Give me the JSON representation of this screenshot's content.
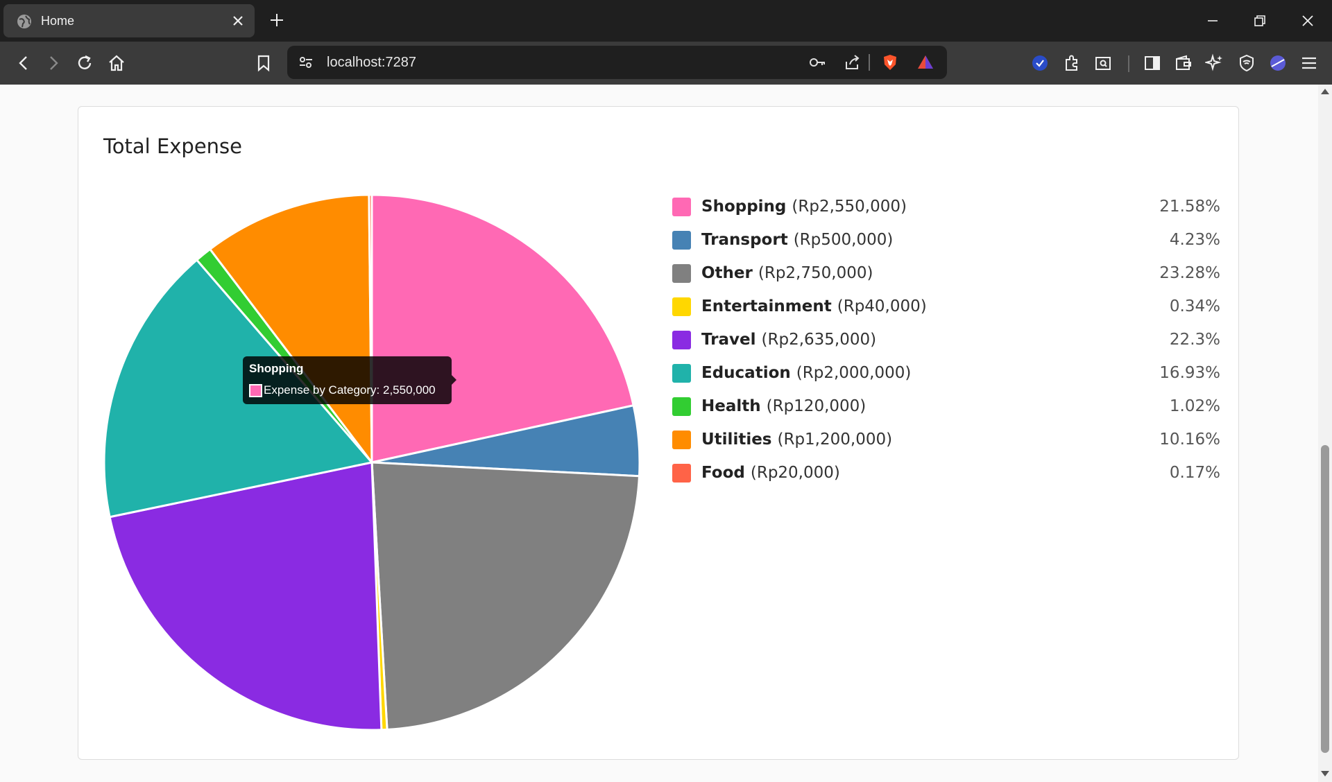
{
  "browser": {
    "tab_title": "Home",
    "url": "localhost:7287"
  },
  "card": {
    "title": "Total Expense"
  },
  "tooltip": {
    "title": "Shopping",
    "body": "Expense by Category: 2,550,000",
    "color": "#ff69b4"
  },
  "legend": [
    {
      "name": "Shopping",
      "amount": "(Rp2,550,000)",
      "percent": "21.58%",
      "color": "#ff69b4"
    },
    {
      "name": "Transport",
      "amount": "(Rp500,000)",
      "percent": "4.23%",
      "color": "#4682b4"
    },
    {
      "name": "Other",
      "amount": "(Rp2,750,000)",
      "percent": "23.28%",
      "color": "#808080"
    },
    {
      "name": "Entertainment",
      "amount": "(Rp40,000)",
      "percent": "0.34%",
      "color": "#ffd700"
    },
    {
      "name": "Travel",
      "amount": "(Rp2,635,000)",
      "percent": "22.3%",
      "color": "#8a2be2"
    },
    {
      "name": "Education",
      "amount": "(Rp2,000,000)",
      "percent": "16.93%",
      "color": "#20b2aa"
    },
    {
      "name": "Health",
      "amount": "(Rp120,000)",
      "percent": "1.02%",
      "color": "#32cd32"
    },
    {
      "name": "Utilities",
      "amount": "(Rp1,200,000)",
      "percent": "10.16%",
      "color": "#ff8c00"
    },
    {
      "name": "Food",
      "amount": "(Rp20,000)",
      "percent": "0.17%",
      "color": "#ff6347"
    }
  ],
  "chart_data": {
    "type": "pie",
    "title": "Total Expense",
    "categories": [
      "Shopping",
      "Transport",
      "Other",
      "Entertainment",
      "Travel",
      "Education",
      "Health",
      "Utilities",
      "Food"
    ],
    "values": [
      2550000,
      500000,
      2750000,
      40000,
      2635000,
      2000000,
      120000,
      1200000,
      20000
    ],
    "colors": [
      "#ff69b4",
      "#4682b4",
      "#808080",
      "#ffd700",
      "#8a2be2",
      "#20b2aa",
      "#32cd32",
      "#ff8c00",
      "#ff6347"
    ],
    "legend": "right"
  }
}
